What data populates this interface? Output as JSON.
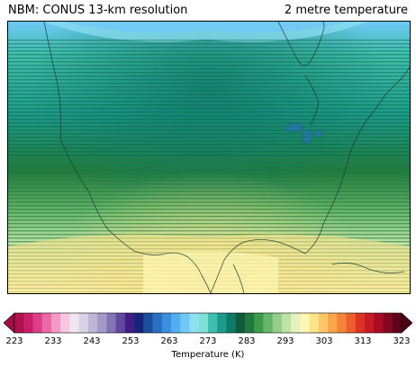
{
  "header": {
    "title_left": "NBM: CONUS 13-km resolution",
    "title_right": "2 metre temperature"
  },
  "map": {
    "field": "2 metre temperature",
    "colors": {
      "frame": "#000000",
      "coastline": "#1a3a2a"
    }
  },
  "colorbar": {
    "label": "Temperature (K)",
    "min": 223,
    "max": 323,
    "ticks": [
      "223",
      "233",
      "243",
      "253",
      "263",
      "273",
      "283",
      "293",
      "303",
      "313",
      "323"
    ],
    "extend": "both",
    "colors": [
      "#b0124e",
      "#c91e68",
      "#dc3f86",
      "#ea6aa6",
      "#f59ac6",
      "#fbc6df",
      "#efe6ef",
      "#d8d2e6",
      "#bdb6d7",
      "#a199c6",
      "#8374b4",
      "#62479d",
      "#3f1f86",
      "#18247a",
      "#1c4e9b",
      "#2a6fc2",
      "#3c8ee0",
      "#52aef0",
      "#6fc8f6",
      "#8edff2",
      "#7fe0d6",
      "#3fbfae",
      "#1c9a8a",
      "#0f7a6a",
      "#0e5a3a",
      "#1f7a3c",
      "#3d9a4c",
      "#66b66a",
      "#93cf8a",
      "#bfe3a6",
      "#e4f2c0",
      "#fdf6b4",
      "#fde38a",
      "#fbc667",
      "#f8a64a",
      "#f3843a",
      "#ec5e2c",
      "#dd3324",
      "#c71a24",
      "#a80c24",
      "#860622",
      "#5e031c"
    ]
  }
}
